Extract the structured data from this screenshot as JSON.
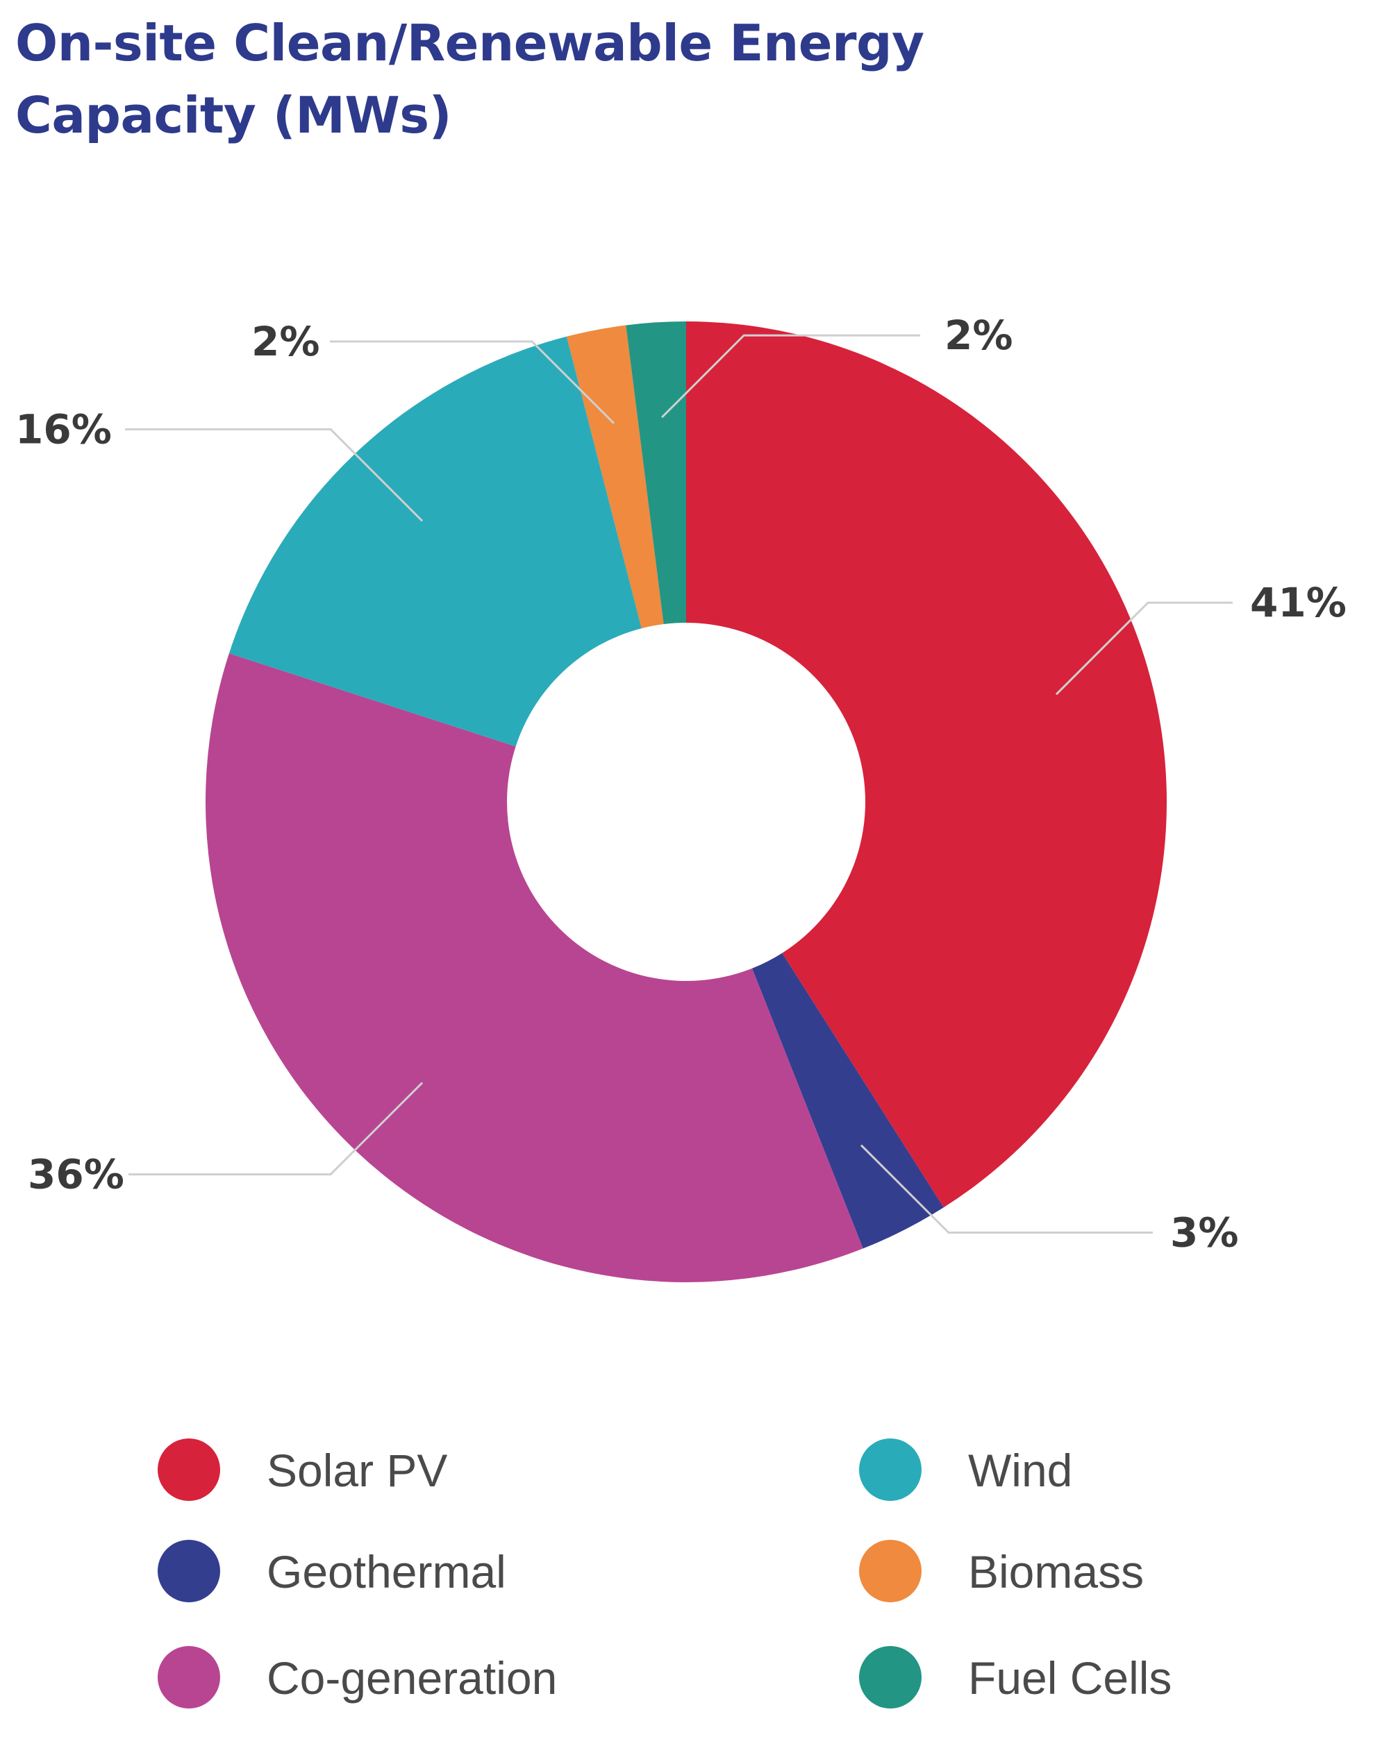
{
  "chart_data": {
    "type": "pie",
    "title_lines": [
      "On-site Clean/Renewable Energy",
      "Capacity (MWs)"
    ],
    "donut": true,
    "slices": [
      {
        "name": "Solar PV",
        "value": 41,
        "label": "41%",
        "color": "#d7223b"
      },
      {
        "name": "Geothermal",
        "value": 3,
        "label": "3%",
        "color": "#333e8f"
      },
      {
        "name": "Co-generation",
        "value": 36,
        "label": "36%",
        "color": "#b84592"
      },
      {
        "name": "Wind",
        "value": 16,
        "label": "16%",
        "color": "#2aabb9"
      },
      {
        "name": "Biomass",
        "value": 2,
        "label": "2%",
        "color": "#ef8a3f"
      },
      {
        "name": "Fuel Cells",
        "value": 2,
        "label": "2%",
        "color": "#229584"
      }
    ],
    "legend": {
      "placement": "bottom",
      "items": [
        {
          "label": "Solar PV",
          "color": "#d7223b"
        },
        {
          "label": "Wind",
          "color": "#2aabb9"
        },
        {
          "label": "Geothermal",
          "color": "#333e8f"
        },
        {
          "label": "Biomass",
          "color": "#ef8a3f"
        },
        {
          "label": "Co-generation",
          "color": "#b84592"
        },
        {
          "label": "Fuel Cells",
          "color": "#229584"
        }
      ]
    }
  }
}
